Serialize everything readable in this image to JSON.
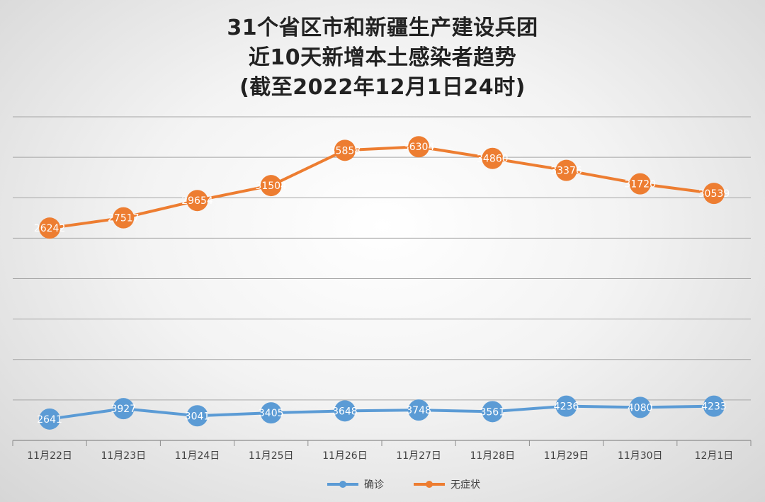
{
  "chart_data": {
    "type": "line",
    "title_lines": [
      "31个省区市和新疆生产建设兵团",
      "近10天新增本土感染者趋势",
      "(截至2022年12月1日24时)"
    ],
    "categories": [
      "11月22日",
      "11月23日",
      "11月24日",
      "11月25日",
      "11月26日",
      "11月27日",
      "11月28日",
      "11月29日",
      "11月30日",
      "12月1日"
    ],
    "series": [
      {
        "name": "确诊",
        "color": "#5b9bd5",
        "values": [
          2641,
          3927,
          3041,
          3405,
          3648,
          3748,
          3561,
          4236,
          4080,
          4233
        ]
      },
      {
        "name": "无症状",
        "color": "#ed7d31",
        "values": [
          26242,
          27517,
          29654,
          31504,
          35858,
          36304,
          34860,
          33376,
          31720,
          30539
        ]
      }
    ],
    "ylim": [
      0,
      40000
    ],
    "grid": true,
    "legend_position": "bottom"
  }
}
